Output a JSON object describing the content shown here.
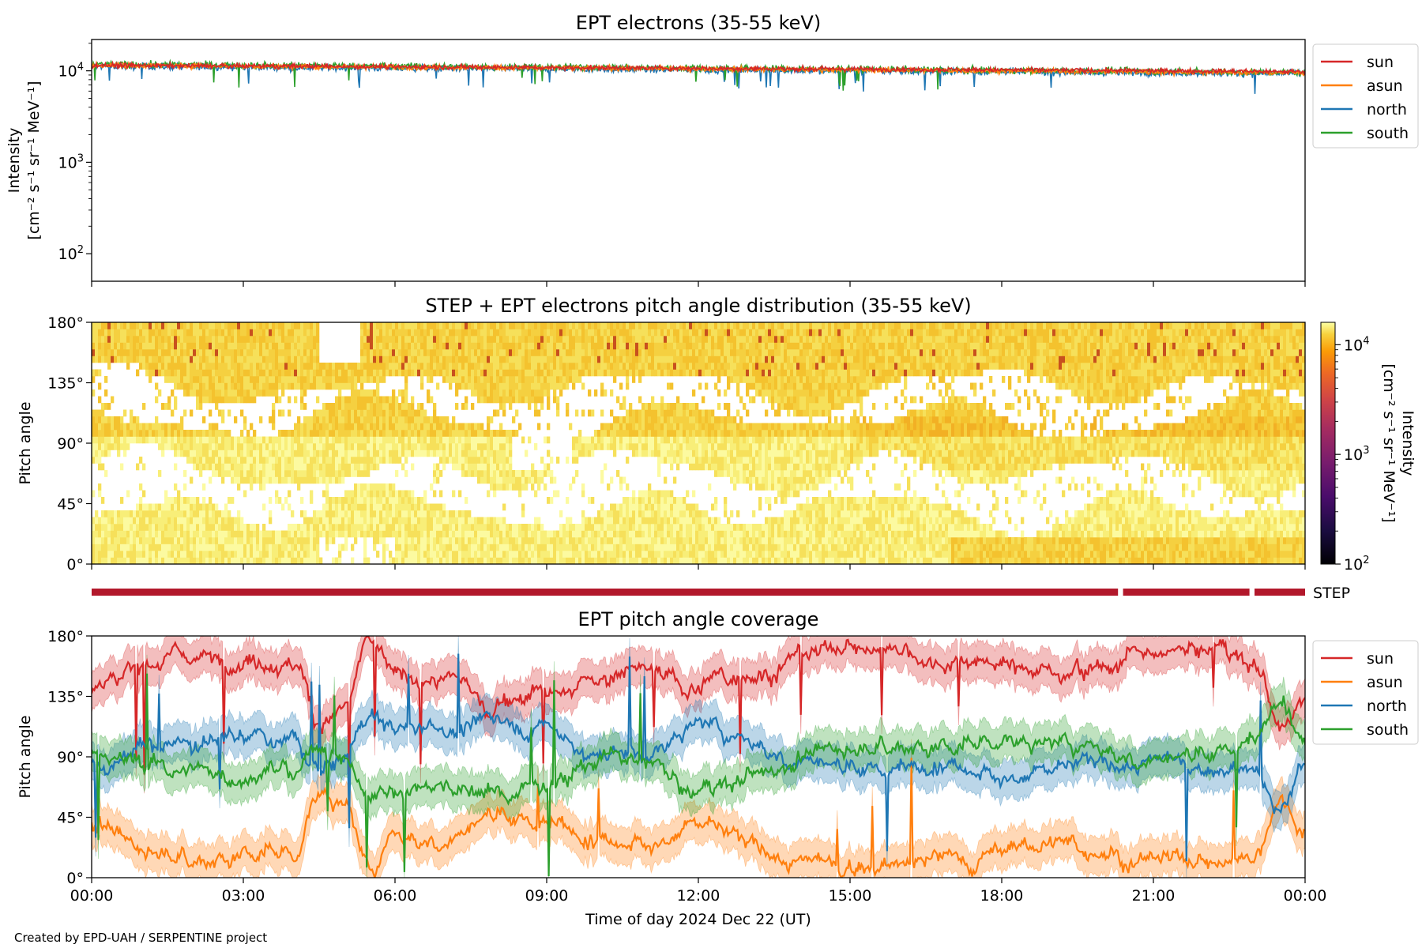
{
  "footer": "Created by EPD-UAH / SERPENTINE project",
  "chart_data": [
    {
      "type": "line",
      "title": "EPT electrons (35-55 keV)",
      "ylabel_line1": "Intensity",
      "ylabel_line2": "[cm⁻² s⁻¹ sr⁻¹ MeV⁻¹]",
      "yscale": "log",
      "ylim": [
        50,
        22000
      ],
      "xlim_hours": [
        0,
        24
      ],
      "yticks": [
        {
          "value": 100,
          "base": "10",
          "exp": "2"
        },
        {
          "value": 1000,
          "base": "10",
          "exp": "3"
        },
        {
          "value": 10000,
          "base": "10",
          "exp": "4"
        }
      ],
      "legend_position": "outside-right-top",
      "series": [
        {
          "name": "sun",
          "color": "#d62728",
          "start": 11500,
          "end": 9800,
          "noise": 0.04
        },
        {
          "name": "asun",
          "color": "#ff7f0e",
          "start": 11500,
          "end": 9500,
          "noise": 0.045
        },
        {
          "name": "north",
          "color": "#1f77b4",
          "start": 11200,
          "end": 9300,
          "noise": 0.055
        },
        {
          "name": "south",
          "color": "#2ca02c",
          "start": 11800,
          "end": 9600,
          "noise": 0.055
        }
      ]
    },
    {
      "type": "heatmap",
      "title": "STEP + EPT electrons pitch angle distribution (35-55 keV)",
      "ylabel": "Pitch angle",
      "yticks": [
        "0°",
        "45°",
        "90°",
        "135°",
        "180°"
      ],
      "ylim": [
        0,
        180
      ],
      "xlim_hours": [
        0,
        24
      ],
      "colorbar": {
        "label_line1": "Intensity",
        "label_line2": "[cm⁻² s⁻¹ sr⁻¹ MeV⁻¹]",
        "scale": "log",
        "range": [
          100,
          16000
        ],
        "colormap": "inferno",
        "ticks": [
          {
            "value": 100,
            "base": "10",
            "exp": "2"
          },
          {
            "value": 1000,
            "base": "10",
            "exp": "3"
          },
          {
            "value": 10000,
            "base": "10",
            "exp": "4"
          }
        ]
      }
    },
    {
      "type": "bar",
      "label": "STEP",
      "color": "#b2182b",
      "segments_hours": [
        [
          0,
          20.3
        ],
        [
          20.4,
          22.9
        ],
        [
          23.0,
          24
        ]
      ]
    },
    {
      "type": "line",
      "title": "EPT pitch angle coverage",
      "ylabel": "Pitch angle",
      "xlabel": "Time of day 2024 Dec 22 (UT)",
      "yticks": [
        "0°",
        "45°",
        "90°",
        "135°",
        "180°"
      ],
      "ylim": [
        0,
        180
      ],
      "xticks": [
        "00:00",
        "03:00",
        "06:00",
        "09:00",
        "12:00",
        "15:00",
        "18:00",
        "21:00",
        "00:00"
      ],
      "xlim_hours": [
        0,
        24
      ],
      "legend_position": "outside-right-top",
      "series": [
        {
          "name": "sun",
          "color": "#d62728",
          "key_hours": [
            0,
            1,
            2,
            3,
            4,
            4.5,
            5,
            5.5,
            6,
            7,
            8,
            9,
            10,
            11,
            12,
            13,
            14,
            15,
            16,
            17,
            18,
            19,
            20,
            21,
            22,
            23,
            23.5,
            24
          ],
          "key_values": [
            140,
            160,
            165,
            165,
            160,
            115,
            125,
            175,
            150,
            150,
            130,
            140,
            150,
            155,
            140,
            155,
            165,
            170,
            170,
            165,
            160,
            155,
            160,
            165,
            170,
            165,
            115,
            140
          ]
        },
        {
          "name": "asun",
          "color": "#ff7f0e",
          "key_hours": [
            0,
            1,
            2,
            3,
            4,
            4.5,
            5,
            5.5,
            6,
            7,
            8,
            9,
            10,
            11,
            12,
            13,
            14,
            15,
            16,
            17,
            18,
            19,
            20,
            21,
            22,
            23,
            23.5,
            24
          ],
          "key_values": [
            40,
            20,
            15,
            15,
            20,
            65,
            55,
            5,
            30,
            30,
            50,
            40,
            30,
            25,
            40,
            25,
            15,
            10,
            10,
            15,
            20,
            25,
            20,
            15,
            10,
            15,
            65,
            40
          ]
        },
        {
          "name": "north",
          "color": "#1f77b4",
          "key_hours": [
            0,
            1,
            2,
            3,
            4,
            4.5,
            5,
            5.5,
            6,
            7,
            8,
            9,
            10,
            11,
            12,
            13,
            14,
            15,
            16,
            17,
            18,
            19,
            20,
            21,
            22,
            23,
            23.5,
            24
          ],
          "key_values": [
            85,
            95,
            100,
            105,
            100,
            80,
            90,
            120,
            115,
            110,
            120,
            110,
            90,
            95,
            115,
            100,
            90,
            85,
            80,
            85,
            75,
            80,
            85,
            90,
            85,
            80,
            45,
            80
          ]
        },
        {
          "name": "south",
          "color": "#2ca02c",
          "key_hours": [
            0,
            1,
            2,
            3,
            4,
            4.5,
            5,
            5.5,
            6,
            7,
            8,
            9,
            10,
            11,
            12,
            13,
            14,
            15,
            16,
            17,
            18,
            19,
            20,
            21,
            22,
            23,
            23.5,
            24
          ],
          "key_values": [
            95,
            85,
            80,
            75,
            80,
            100,
            90,
            60,
            65,
            70,
            60,
            70,
            90,
            85,
            65,
            80,
            90,
            95,
            100,
            95,
            105,
            100,
            95,
            90,
            95,
            100,
            135,
            100
          ]
        }
      ]
    }
  ]
}
